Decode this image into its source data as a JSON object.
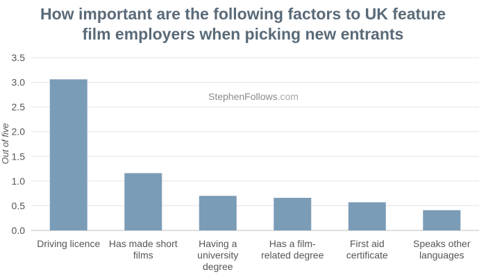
{
  "chart_data": {
    "type": "bar",
    "title_lines": [
      "How important are the following factors to UK feature",
      "film employers when picking new entrants"
    ],
    "ylabel": "Out of five",
    "xlabel": "",
    "ylim": [
      0,
      3.5
    ],
    "yticks": [
      "0.0",
      "0.5",
      "1.0",
      "1.5",
      "2.0",
      "2.5",
      "3.0",
      "3.5"
    ],
    "grid": true,
    "bar_color": "#7b9cb7",
    "categories": [
      [
        "Driving licence"
      ],
      [
        "Has made short",
        "films"
      ],
      [
        "Having a",
        "university",
        "degree"
      ],
      [
        "Has a film-",
        "related degree"
      ],
      [
        "First aid",
        "certificate"
      ],
      [
        "Speaks other",
        "languages"
      ]
    ],
    "values": [
      3.06,
      1.16,
      0.7,
      0.66,
      0.57,
      0.41
    ]
  },
  "watermark": {
    "name": "StephenFollows",
    "domain": ".com"
  }
}
